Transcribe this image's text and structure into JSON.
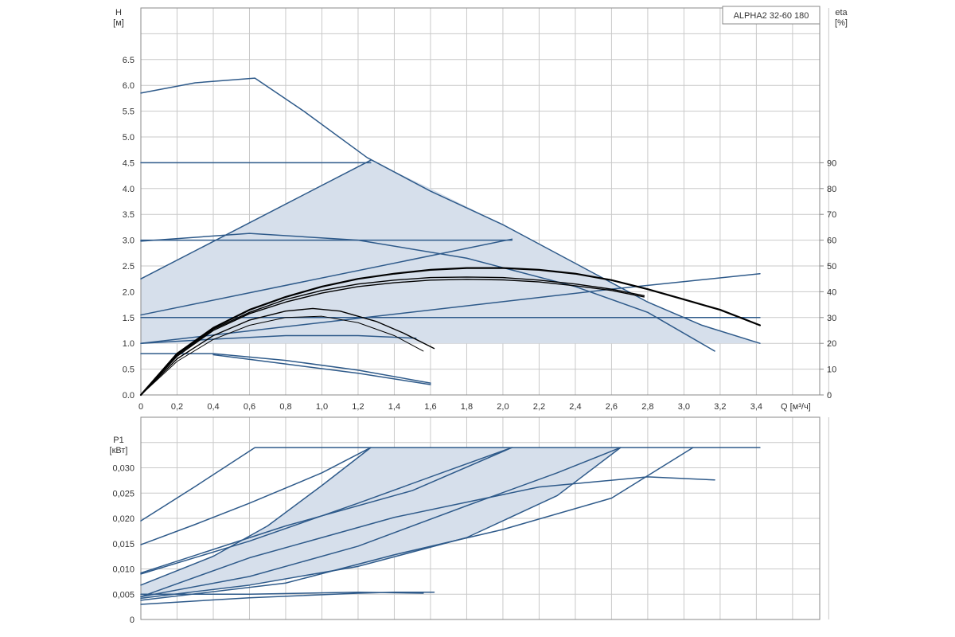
{
  "model": "ALPHA2 32-60 180",
  "colors": {
    "blue": "#2e5a8a",
    "region_fill": "#d6dfeb",
    "efficiency": "#000000",
    "grid": "#c9c9c9"
  },
  "chart_data": [
    {
      "id": "head",
      "type": "line",
      "ylabel": "H",
      "yunit": "[м]",
      "y2label": "eta",
      "y2unit": "[%]",
      "xlabel": "Q [м³/ч]",
      "xlim": [
        0,
        3.75
      ],
      "ylim": [
        0,
        7.5
      ],
      "y2lim": [
        0,
        150
      ],
      "grid": true,
      "x_ticks": [
        "0",
        "0,2",
        "0,4",
        "0,6",
        "0,8",
        "1,0",
        "1,2",
        "1,4",
        "1,6",
        "1,8",
        "2,0",
        "2,2",
        "2,4",
        "2,6",
        "2,8",
        "3,0",
        "3,2",
        "3,4"
      ],
      "y_ticks": [
        "0.0",
        "0.5",
        "1.0",
        "1.5",
        "2.0",
        "2.5",
        "3.0",
        "3.5",
        "4.0",
        "4.5",
        "5.0",
        "5.5",
        "6.0",
        "6.5"
      ],
      "y2_ticks": [
        "0",
        "10",
        "20",
        "30",
        "40",
        "50",
        "60",
        "70",
        "80",
        "90"
      ],
      "region": [
        [
          0,
          2.25
        ],
        [
          1.27,
          4.55
        ],
        [
          1.6,
          4.0
        ],
        [
          2.0,
          3.3
        ],
        [
          2.4,
          2.55
        ],
        [
          2.8,
          1.8
        ],
        [
          3.1,
          1.35
        ],
        [
          3.42,
          1.0
        ],
        [
          0,
          1.0
        ]
      ],
      "series": [
        {
          "role": "head",
          "points": [
            [
              0,
              5.85
            ],
            [
              0.3,
              6.05
            ],
            [
              0.63,
              6.14
            ],
            [
              0.9,
              5.5
            ],
            [
              1.25,
              4.6
            ],
            [
              1.6,
              3.95
            ],
            [
              2.0,
              3.3
            ],
            [
              2.4,
              2.55
            ],
            [
              2.8,
              1.8
            ],
            [
              3.1,
              1.35
            ],
            [
              3.42,
              1.0
            ]
          ]
        },
        {
          "role": "head",
          "points": [
            [
              0,
              4.5
            ],
            [
              1.27,
              4.5
            ]
          ]
        },
        {
          "role": "head",
          "points": [
            [
              0,
              2.25
            ],
            [
              1.27,
              4.55
            ]
          ]
        },
        {
          "role": "head",
          "points": [
            [
              0,
              3.0
            ],
            [
              2.05,
              3.0
            ]
          ]
        },
        {
          "role": "head",
          "points": [
            [
              0,
              1.55
            ],
            [
              2.05,
              3.02
            ]
          ]
        },
        {
          "role": "head",
          "points": [
            [
              0,
              1.5
            ],
            [
              3.42,
              1.5
            ]
          ]
        },
        {
          "role": "head",
          "points": [
            [
              0,
              1.0
            ],
            [
              2.6,
              2.05
            ],
            [
              3.42,
              2.35
            ]
          ]
        },
        {
          "role": "head",
          "points": [
            [
              0,
              2.98
            ],
            [
              0.6,
              3.13
            ],
            [
              1.2,
              3.0
            ],
            [
              1.8,
              2.65
            ],
            [
              2.4,
              2.1
            ],
            [
              2.8,
              1.6
            ],
            [
              3.17,
              0.85
            ]
          ]
        },
        {
          "role": "head",
          "points": [
            [
              0,
              1.0
            ],
            [
              0.4,
              1.08
            ],
            [
              0.8,
              1.15
            ],
            [
              1.2,
              1.15
            ],
            [
              1.52,
              1.1
            ]
          ]
        },
        {
          "role": "head",
          "points": [
            [
              0,
              0.8
            ],
            [
              0.4,
              0.8
            ],
            [
              0.8,
              0.67
            ],
            [
              1.2,
              0.48
            ],
            [
              1.6,
              0.23
            ]
          ]
        },
        {
          "role": "head",
          "points": [
            [
              0.4,
              0.78
            ],
            [
              0.8,
              0.6
            ],
            [
              1.2,
              0.42
            ],
            [
              1.6,
              0.2
            ]
          ]
        },
        {
          "role": "efficiency",
          "width": 2.2,
          "points": [
            [
              0,
              0
            ],
            [
              0.2,
              16
            ],
            [
              0.4,
              26
            ],
            [
              0.6,
              33
            ],
            [
              0.8,
              38
            ],
            [
              1.0,
              42
            ],
            [
              1.2,
              45
            ],
            [
              1.4,
              47
            ],
            [
              1.6,
              48.5
            ],
            [
              1.8,
              49.2
            ],
            [
              2.0,
              49.2
            ],
            [
              2.2,
              48.5
            ],
            [
              2.4,
              47
            ],
            [
              2.6,
              44.5
            ],
            [
              2.8,
              41
            ],
            [
              3.0,
              37
            ],
            [
              3.2,
              33
            ],
            [
              3.42,
              27
            ]
          ]
        },
        {
          "role": "efficiency",
          "width": 1.4,
          "points": [
            [
              0,
              0
            ],
            [
              0.2,
              15.5
            ],
            [
              0.4,
              25.5
            ],
            [
              0.6,
              32
            ],
            [
              0.8,
              37
            ],
            [
              1.0,
              40.5
            ],
            [
              1.2,
              43
            ],
            [
              1.4,
              44.5
            ],
            [
              1.6,
              45.5
            ],
            [
              1.8,
              45.7
            ],
            [
              2.0,
              45.5
            ],
            [
              2.2,
              44.5
            ],
            [
              2.4,
              43
            ],
            [
              2.6,
              41
            ],
            [
              2.78,
              38.5
            ]
          ]
        },
        {
          "role": "efficiency",
          "width": 1.4,
          "points": [
            [
              0,
              0
            ],
            [
              0.2,
              15
            ],
            [
              0.4,
              25
            ],
            [
              0.6,
              31.5
            ],
            [
              0.8,
              36
            ],
            [
              1.0,
              39.5
            ],
            [
              1.2,
              42
            ],
            [
              1.4,
              43.5
            ],
            [
              1.6,
              44.5
            ],
            [
              1.8,
              44.8
            ],
            [
              2.0,
              44.6
            ],
            [
              2.2,
              43.8
            ],
            [
              2.4,
              42.3
            ],
            [
              2.6,
              40.5
            ],
            [
              2.78,
              38
            ]
          ]
        },
        {
          "role": "efficiency",
          "width": 1.4,
          "points": [
            [
              0,
              0
            ],
            [
              0.2,
              14
            ],
            [
              0.4,
              23
            ],
            [
              0.6,
              29
            ],
            [
              0.8,
              32.5
            ],
            [
              0.95,
              33.5
            ],
            [
              1.1,
              32.5
            ],
            [
              1.3,
              28.5
            ],
            [
              1.45,
              24
            ],
            [
              1.62,
              18
            ]
          ]
        },
        {
          "role": "efficiency",
          "width": 1.0,
          "points": [
            [
              0,
              0
            ],
            [
              0.2,
              13
            ],
            [
              0.4,
              21.5
            ],
            [
              0.6,
              27
            ],
            [
              0.8,
              30
            ],
            [
              1.0,
              30.5
            ],
            [
              1.2,
              28
            ],
            [
              1.4,
              23
            ],
            [
              1.56,
              17
            ]
          ]
        }
      ]
    },
    {
      "id": "power",
      "type": "line",
      "ylabel": "P1",
      "yunit": "[кВт]",
      "xlim": [
        0,
        3.75
      ],
      "ylim": [
        0,
        0.04
      ],
      "grid": true,
      "y_ticks": [
        "0",
        "0,005",
        "0,010",
        "0,015",
        "0,020",
        "0,025",
        "0,030"
      ],
      "region": [
        [
          0,
          0.0068
        ],
        [
          0.4,
          0.0125
        ],
        [
          0.7,
          0.0185
        ],
        [
          1.0,
          0.0265
        ],
        [
          1.27,
          0.034
        ],
        [
          2.65,
          0.034
        ],
        [
          2.3,
          0.0245
        ],
        [
          1.8,
          0.0162
        ],
        [
          1.2,
          0.0105
        ],
        [
          0.6,
          0.0068
        ],
        [
          0,
          0.0042
        ]
      ],
      "series": [
        {
          "points": [
            [
              0,
              0.0195
            ],
            [
              0.3,
              0.0263
            ],
            [
              0.63,
              0.034
            ],
            [
              3.42,
              0.034
            ]
          ]
        },
        {
          "points": [
            [
              0,
              0.0148
            ],
            [
              0.3,
              0.0188
            ],
            [
              0.6,
              0.023
            ],
            [
              1.0,
              0.029
            ],
            [
              1.27,
              0.034
            ]
          ]
        },
        {
          "points": [
            [
              0,
              0.0068
            ],
            [
              0.4,
              0.0125
            ],
            [
              0.7,
              0.0185
            ],
            [
              1.0,
              0.0265
            ],
            [
              1.27,
              0.034
            ]
          ]
        },
        {
          "points": [
            [
              0,
              0.009
            ],
            [
              0.6,
              0.0155
            ],
            [
              1.2,
              0.023
            ],
            [
              1.7,
              0.0295
            ],
            [
              2.05,
              0.034
            ]
          ]
        },
        {
          "points": [
            [
              0,
              0.0092
            ],
            [
              0.8,
              0.0185
            ],
            [
              1.5,
              0.0255
            ],
            [
              2.05,
              0.034
            ]
          ]
        },
        {
          "points": [
            [
              0,
              0.0045
            ],
            [
              0.6,
              0.0085
            ],
            [
              1.2,
              0.0145
            ],
            [
              1.8,
              0.0225
            ],
            [
              2.3,
              0.029
            ],
            [
              2.65,
              0.034
            ]
          ]
        },
        {
          "points": [
            [
              0,
              0.0042
            ],
            [
              0.6,
              0.0068
            ],
            [
              1.2,
              0.0105
            ],
            [
              1.8,
              0.0162
            ],
            [
              2.3,
              0.0245
            ],
            [
              2.65,
              0.034
            ]
          ]
        },
        {
          "points": [
            [
              0,
              0.0038
            ],
            [
              0.8,
              0.0072
            ],
            [
              1.4,
              0.0128
            ],
            [
              2.0,
              0.0178
            ],
            [
              2.6,
              0.024
            ],
            [
              3.05,
              0.034
            ]
          ]
        },
        {
          "points": [
            [
              0,
              0.0045
            ],
            [
              0.6,
              0.0122
            ],
            [
              1.4,
              0.0202
            ],
            [
              2.2,
              0.0262
            ],
            [
              2.8,
              0.0282
            ],
            [
              3.17,
              0.0276
            ]
          ]
        },
        {
          "points": [
            [
              0,
              0.003
            ],
            [
              0.6,
              0.0043
            ],
            [
              1.2,
              0.0052
            ],
            [
              1.4,
              0.0054
            ],
            [
              1.62,
              0.0054
            ]
          ]
        },
        {
          "points": [
            [
              0,
              0.005
            ],
            [
              0.6,
              0.005
            ],
            [
              1.2,
              0.0054
            ],
            [
              1.56,
              0.0052
            ]
          ]
        }
      ]
    }
  ]
}
